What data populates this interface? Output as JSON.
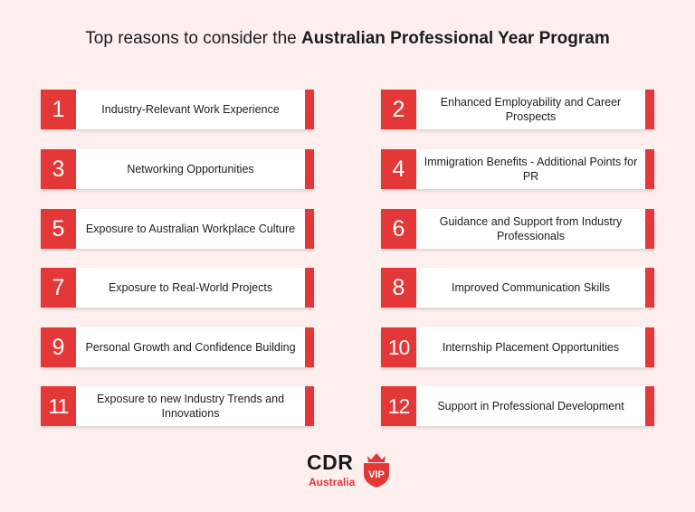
{
  "header": {
    "title_lead": "Top reasons to consider the",
    "title_bold": "Australian Professional Year Program"
  },
  "reasons": [
    {
      "number": "1",
      "text": "Industry-Relevant Work Experience"
    },
    {
      "number": "2",
      "text": "Enhanced Employability and Career Prospects"
    },
    {
      "number": "3",
      "text": "Networking Opportunities"
    },
    {
      "number": "4",
      "text": "Immigration Benefits - Additional Points for PR"
    },
    {
      "number": "5",
      "text": "Exposure to Australian Workplace Culture"
    },
    {
      "number": "6",
      "text": "Guidance and Support from Industry Professionals"
    },
    {
      "number": "7",
      "text": "Exposure to Real-World Projects"
    },
    {
      "number": "8",
      "text": "Improved Communication Skills"
    },
    {
      "number": "9",
      "text": "Personal Growth and Confidence Building"
    },
    {
      "number": "10",
      "text": "Internship Placement Opportunities"
    },
    {
      "number": "11",
      "text": "Exposure to new Industry Trends and Innovations"
    },
    {
      "number": "12",
      "text": "Support in Professional Development"
    }
  ],
  "logo": {
    "brand": "CDR",
    "sub": "Australia",
    "badge": "VIP"
  },
  "colors": {
    "accent": "#e43737",
    "background": "#fcefee"
  }
}
